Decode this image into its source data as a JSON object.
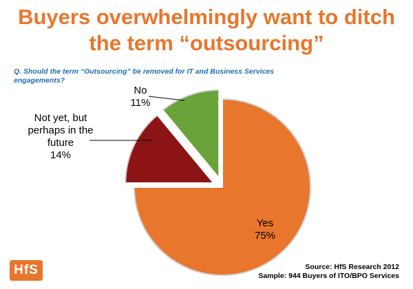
{
  "slide": {
    "title": "Buyers overwhelmingly want to ditch the term “outsourcing”",
    "question": "Q. Should the term  “Outsourcing”  be removed for IT and Business Services engagements?",
    "source_line1": "Source: HfS Research 2012",
    "source_line2": "Sample: 944 Buyers of ITO/BPO Services",
    "logo_text": "HfS"
  },
  "chart_data": {
    "type": "pie",
    "title": "",
    "exploded": true,
    "slices": [
      {
        "label_lines": [
          "Yes",
          "75%"
        ],
        "value": 75,
        "color": "#e8762c"
      },
      {
        "label_lines": [
          "Not yet, but",
          "perhaps in the",
          "future",
          "14%"
        ],
        "value": 14,
        "color": "#8c1414"
      },
      {
        "label_lines": [
          "No",
          "11%"
        ],
        "value": 11,
        "color": "#6aa33a"
      }
    ]
  }
}
